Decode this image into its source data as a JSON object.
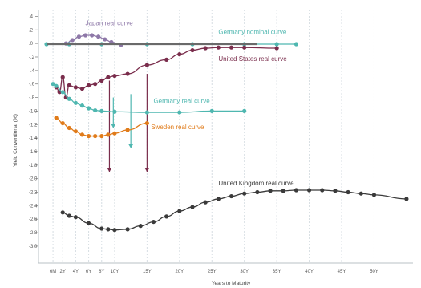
{
  "chart_data": {
    "type": "line",
    "xlabel": "Years to Maturity",
    "ylabel": "Yield Conventional (%)",
    "x_ticks": [
      {
        "label": "6M",
        "value": 0.5
      },
      {
        "label": "2Y",
        "value": 2
      },
      {
        "label": "4Y",
        "value": 4
      },
      {
        "label": "6Y",
        "value": 6
      },
      {
        "label": "8Y",
        "value": 8
      },
      {
        "label": "10Y",
        "value": 10
      },
      {
        "label": "15Y",
        "value": 15
      },
      {
        "label": "20Y",
        "value": 20
      },
      {
        "label": "25Y",
        "value": 25
      },
      {
        "label": "30Y",
        "value": 30
      },
      {
        "label": "35Y",
        "value": 35
      },
      {
        "label": "40Y",
        "value": 40
      },
      {
        "label": "45Y",
        "value": 45
      },
      {
        "label": "50Y",
        "value": 50
      }
    ],
    "y_ticks": [
      0.4,
      0.2,
      0.0,
      -0.2,
      -0.4,
      -0.6,
      -0.8,
      -1.0,
      -1.2,
      -1.4,
      -1.6,
      -1.8,
      -2.0,
      -2.2,
      -2.4,
      -2.6,
      -2.8,
      -3.0
    ],
    "y_tick_labels": [
      ".4",
      ".2",
      ".0",
      "-.2",
      "-.4",
      "-.6",
      "-.8",
      "-1.0",
      "-1.2",
      "-1.4",
      "-1.6",
      "-1.8",
      "-2.0",
      "-2.2",
      "-2.4",
      "-2.6",
      "-2.8",
      "-3.0"
    ],
    "ylim": [
      -3.25,
      0.5
    ],
    "xlim": [
      -0.5,
      56
    ],
    "grid": true,
    "series": [
      {
        "name": "Japan real curve",
        "color": "#8e78a8",
        "label_at": [
          5.5,
          0.27
        ],
        "points": [
          [
            2.5,
            0.0
          ],
          [
            3.5,
            0.05
          ],
          [
            4.5,
            0.1
          ],
          [
            5.5,
            0.12
          ],
          [
            6.5,
            0.12
          ],
          [
            7.5,
            0.1
          ],
          [
            8.5,
            0.06
          ],
          [
            9.5,
            0.02
          ],
          [
            11.0,
            -0.02
          ]
        ]
      },
      {
        "name": "Germany nominal curve",
        "color": "#4fb7b0",
        "label_at": [
          26,
          0.14
        ],
        "points": [
          [
            -0.5,
            -0.01
          ],
          [
            3,
            -0.01
          ],
          [
            8,
            -0.01
          ],
          [
            15,
            -0.01
          ],
          [
            22,
            -0.01
          ],
          [
            30,
            -0.01
          ],
          [
            35,
            -0.01
          ],
          [
            38,
            -0.01
          ]
        ]
      },
      {
        "name": "Germany nominal curve (grey)",
        "color": "#6a6a6a",
        "points": [
          [
            -0.5,
            -0.01
          ],
          [
            6,
            -0.01
          ],
          [
            15,
            -0.01
          ],
          [
            25,
            -0.01
          ],
          [
            32,
            -0.01
          ]
        ]
      },
      {
        "name": "United States real curve",
        "color": "#7a2d4c",
        "label_at": [
          26,
          -0.26
        ],
        "points": [
          [
            1.0,
            -0.65
          ],
          [
            1.5,
            -0.72
          ],
          [
            2.0,
            -0.5
          ],
          [
            2.5,
            -0.8
          ],
          [
            3.0,
            -0.62
          ],
          [
            4.0,
            -0.65
          ],
          [
            5.0,
            -0.67
          ],
          [
            6.0,
            -0.62
          ],
          [
            7.0,
            -0.6
          ],
          [
            8.0,
            -0.55
          ],
          [
            9.0,
            -0.5
          ],
          [
            10.0,
            -0.48
          ],
          [
            12.0,
            -0.45
          ],
          [
            15.0,
            -0.32
          ],
          [
            18.0,
            -0.24
          ],
          [
            20.0,
            -0.16
          ],
          [
            22.0,
            -0.1
          ],
          [
            24.0,
            -0.07
          ],
          [
            26.0,
            -0.06
          ],
          [
            28.0,
            -0.06
          ],
          [
            30.0,
            -0.06
          ],
          [
            35.0,
            -0.07
          ]
        ]
      },
      {
        "name": "Germany real curve",
        "color": "#4fb7b0",
        "label_at": [
          16,
          -0.88
        ],
        "points": [
          [
            0.5,
            -0.6
          ],
          [
            1.0,
            -0.63
          ],
          [
            2.0,
            -0.72
          ],
          [
            3.0,
            -0.82
          ],
          [
            4.0,
            -0.88
          ],
          [
            5.0,
            -0.92
          ],
          [
            6.0,
            -0.96
          ],
          [
            7.0,
            -0.99
          ],
          [
            8.0,
            -1.0
          ],
          [
            10.0,
            -1.01
          ],
          [
            15.0,
            -1.02
          ],
          [
            20.0,
            -1.02
          ],
          [
            25.0,
            -1.0
          ],
          [
            30.0,
            -1.0
          ]
        ]
      },
      {
        "name": "Sweden real curve",
        "color": "#e07b1a",
        "label_at": [
          15.6,
          -1.27
        ],
        "points": [
          [
            1.0,
            -1.1
          ],
          [
            2.0,
            -1.18
          ],
          [
            3.0,
            -1.25
          ],
          [
            4.0,
            -1.3
          ],
          [
            5.0,
            -1.35
          ],
          [
            6.0,
            -1.37
          ],
          [
            7.0,
            -1.37
          ],
          [
            8.0,
            -1.37
          ],
          [
            9.0,
            -1.35
          ],
          [
            10.0,
            -1.33
          ],
          [
            12.0,
            -1.28
          ],
          [
            15.0,
            -1.18
          ]
        ]
      },
      {
        "name": "United Kingdom real curve",
        "color": "#3a3a3a",
        "label_at": [
          26,
          -2.1
        ],
        "points": [
          [
            2.0,
            -2.5
          ],
          [
            3.0,
            -2.55
          ],
          [
            4.0,
            -2.57
          ],
          [
            6.0,
            -2.66
          ],
          [
            8.0,
            -2.74
          ],
          [
            9.0,
            -2.75
          ],
          [
            10.0,
            -2.76
          ],
          [
            12.0,
            -2.75
          ],
          [
            14.0,
            -2.7
          ],
          [
            16.0,
            -2.64
          ],
          [
            18.0,
            -2.56
          ],
          [
            20.0,
            -2.48
          ],
          [
            22.0,
            -2.42
          ],
          [
            24.0,
            -2.35
          ],
          [
            26.0,
            -2.3
          ],
          [
            28.0,
            -2.26
          ],
          [
            30.0,
            -2.22
          ],
          [
            32.0,
            -2.2
          ],
          [
            34.0,
            -2.18
          ],
          [
            36.0,
            -2.18
          ],
          [
            38.0,
            -2.17
          ],
          [
            40.0,
            -2.17
          ],
          [
            42.0,
            -2.17
          ],
          [
            44.0,
            -2.18
          ],
          [
            46.0,
            -2.2
          ],
          [
            48.0,
            -2.22
          ],
          [
            50.0,
            -2.24
          ],
          [
            55.0,
            -2.3
          ]
        ]
      }
    ],
    "arrows": [
      {
        "x": 9.2,
        "from": -0.55,
        "to": -1.9,
        "color": "#7a2d4c"
      },
      {
        "x": 9.8,
        "from": -0.8,
        "to": -1.25,
        "color": "#4fb7b0"
      },
      {
        "x": 15.0,
        "from": -0.45,
        "to": -1.9,
        "color": "#7a2d4c"
      },
      {
        "x": 12.5,
        "from": -0.75,
        "to": -1.55,
        "color": "#4fb7b0"
      }
    ]
  }
}
